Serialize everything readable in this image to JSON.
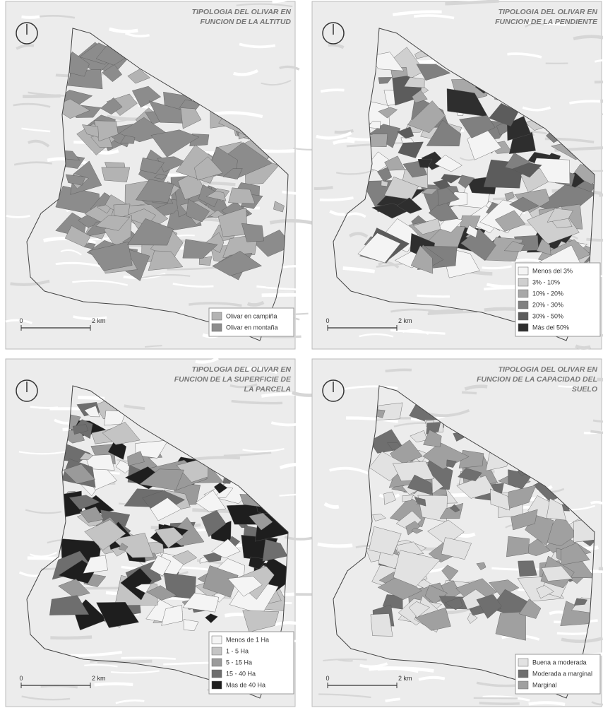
{
  "panels": [
    {
      "title_lines": [
        "TIPOLOGIA DEL OLIVAR EN",
        "FUNCION DE LA ALTITUD"
      ],
      "legend": [
        {
          "label": "Olivar en campiña",
          "color": "#b3b3b3"
        },
        {
          "label": "Olivar en montaña",
          "color": "#8c8c8c"
        }
      ],
      "scale": {
        "start": "0",
        "end": "2 km"
      }
    },
    {
      "title_lines": [
        "TIPOLOGIA DEL OLIVAR EN",
        "FUNCION DE LA PENDIENTE"
      ],
      "legend": [
        {
          "label": "Menos del 3%",
          "color": "#f4f4f4"
        },
        {
          "label": "3% - 10%",
          "color": "#cfcfcf"
        },
        {
          "label": "10% - 20%",
          "color": "#a8a8a8"
        },
        {
          "label": "20% - 30%",
          "color": "#808080"
        },
        {
          "label": "30% - 50%",
          "color": "#5c5c5c"
        },
        {
          "label": "Más del 50%",
          "color": "#2e2e2e"
        }
      ],
      "scale": {
        "start": "0",
        "end": "2 km"
      }
    },
    {
      "title_lines": [
        "TIPOLOGIA DEL OLIVAR EN",
        "FUNCION DE LA SUPERFICIE DE",
        "LA PARCELA"
      ],
      "legend": [
        {
          "label": "Menos de 1 Ha",
          "color": "#f4f4f4"
        },
        {
          "label": "1 - 5 Ha",
          "color": "#c4c4c4"
        },
        {
          "label": "5 - 15 Ha",
          "color": "#9a9a9a"
        },
        {
          "label": "15 - 40 Ha",
          "color": "#6e6e6e"
        },
        {
          "label": "Mas de 40 Ha",
          "color": "#1e1e1e"
        }
      ],
      "scale": {
        "start": "0",
        "end": "2 km"
      }
    },
    {
      "title_lines": [
        "TIPOLOGIA DEL OLIVAR EN",
        "FUNCION DE LA CAPACIDAD DEL",
        "SUELO"
      ],
      "legend": [
        {
          "label": "Buena a moderada",
          "color": "#e2e2e2"
        },
        {
          "label": "Moderada a marginal",
          "color": "#6f6f6f"
        },
        {
          "label": "Marginal",
          "color": "#a0a0a0"
        }
      ],
      "scale": {
        "start": "0",
        "end": "2 km"
      }
    }
  ]
}
